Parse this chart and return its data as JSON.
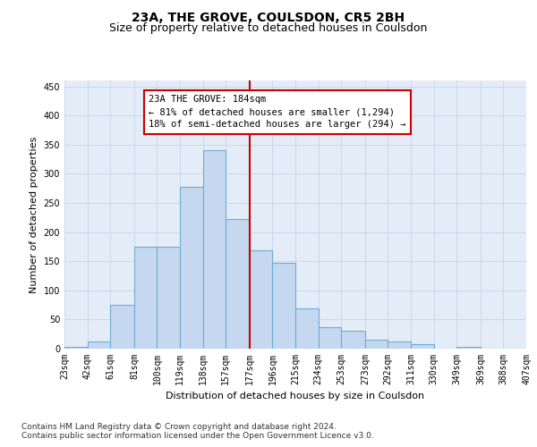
{
  "title": "23A, THE GROVE, COULSDON, CR5 2BH",
  "subtitle": "Size of property relative to detached houses in Coulsdon",
  "xlabel": "Distribution of detached houses by size in Coulsdon",
  "ylabel": "Number of detached properties",
  "bin_edges": [
    23,
    42,
    61,
    81,
    100,
    119,
    138,
    157,
    177,
    196,
    215,
    234,
    253,
    273,
    292,
    311,
    330,
    349,
    369,
    388,
    407
  ],
  "bar_vals": [
    3,
    12,
    75,
    175,
    175,
    277,
    340,
    222,
    168,
    147,
    69,
    37,
    30,
    16,
    12,
    7,
    0,
    3,
    0,
    0
  ],
  "bar_color": "#c5d8ef",
  "bar_edge_color": "#6baed6",
  "vline_x": 177,
  "vline_color": "#cc0000",
  "annotation_text": "23A THE GROVE: 184sqm\n← 81% of detached houses are smaller (1,294)\n18% of semi-detached houses are larger (294) →",
  "annotation_box_facecolor": "#ffffff",
  "annotation_box_edgecolor": "#cc0000",
  "ylim": [
    0,
    460
  ],
  "yticks": [
    0,
    50,
    100,
    150,
    200,
    250,
    300,
    350,
    400,
    450
  ],
  "grid_color": "#c8d4e8",
  "bg_color": "#e4ecf7",
  "footer_line1": "Contains HM Land Registry data © Crown copyright and database right 2024.",
  "footer_line2": "Contains public sector information licensed under the Open Government Licence v3.0.",
  "title_fontsize": 10,
  "subtitle_fontsize": 9,
  "axis_label_fontsize": 8,
  "tick_fontsize": 7,
  "annotation_fontsize": 7.5,
  "footer_fontsize": 6.5
}
